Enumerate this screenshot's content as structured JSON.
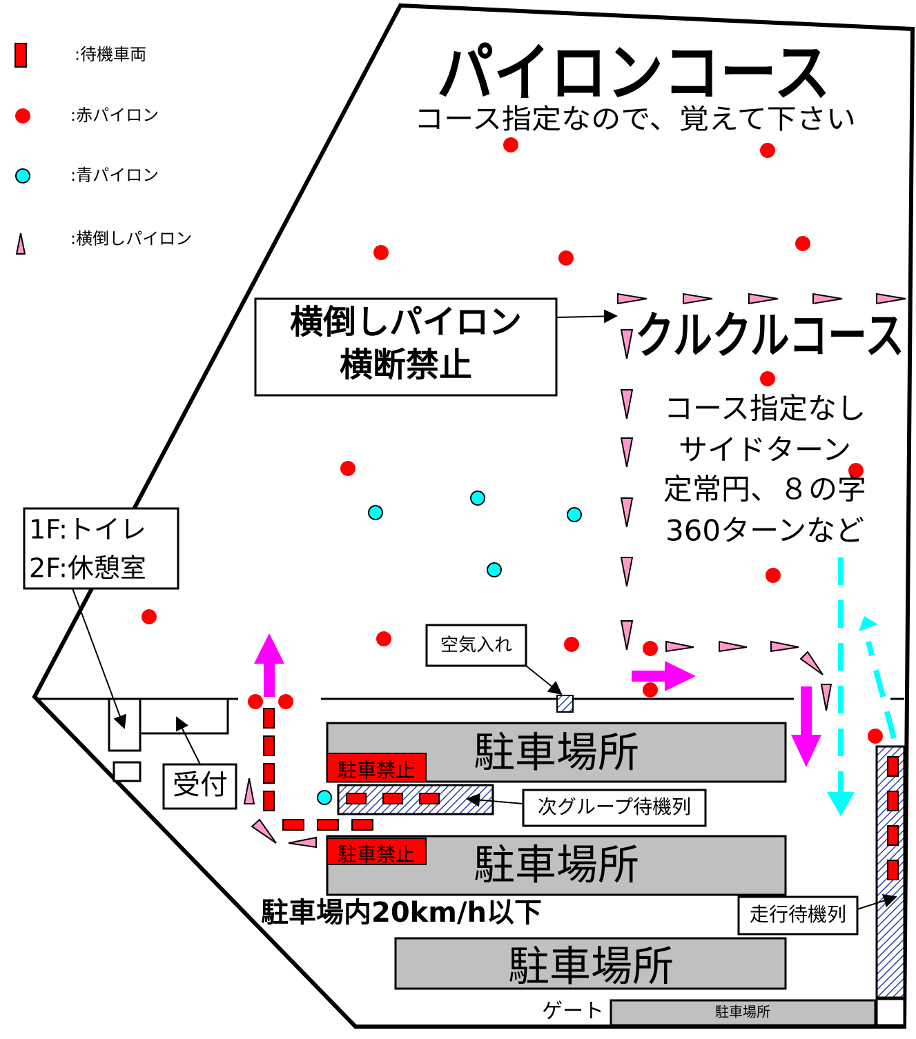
{
  "legend": {
    "items": [
      ":待機車両",
      ":赤パイロン",
      ":青パイロン",
      ":横倒しパイロン"
    ]
  },
  "course": {
    "title": "パイロンコース",
    "subtitle": "コース指定なので、覚えて下さい"
  },
  "crossing_notice": {
    "lines": [
      "横倒しパイロン",
      "横断禁止"
    ]
  },
  "kurukuru": {
    "title": "クルクルコース",
    "notes": [
      "コース指定なし",
      "サイドターン",
      "定常円、８の字",
      "360ターンなど"
    ]
  },
  "facility": {
    "lines": [
      "1F:トイレ",
      "2F:休憩室"
    ]
  },
  "labels": {
    "air": "空気入れ",
    "reception": "受付",
    "next_group": "次グループ待機列",
    "run_queue": "走行待機列",
    "speed_limit": "駐車場内20km/h以下",
    "gate": "ゲート"
  },
  "parking": {
    "lots": [
      "駐車場所",
      "駐車場所",
      "駐車場所"
    ],
    "no_parking": [
      "駐車禁止",
      "駐車禁止"
    ],
    "small_lot": "駐車場所"
  }
}
